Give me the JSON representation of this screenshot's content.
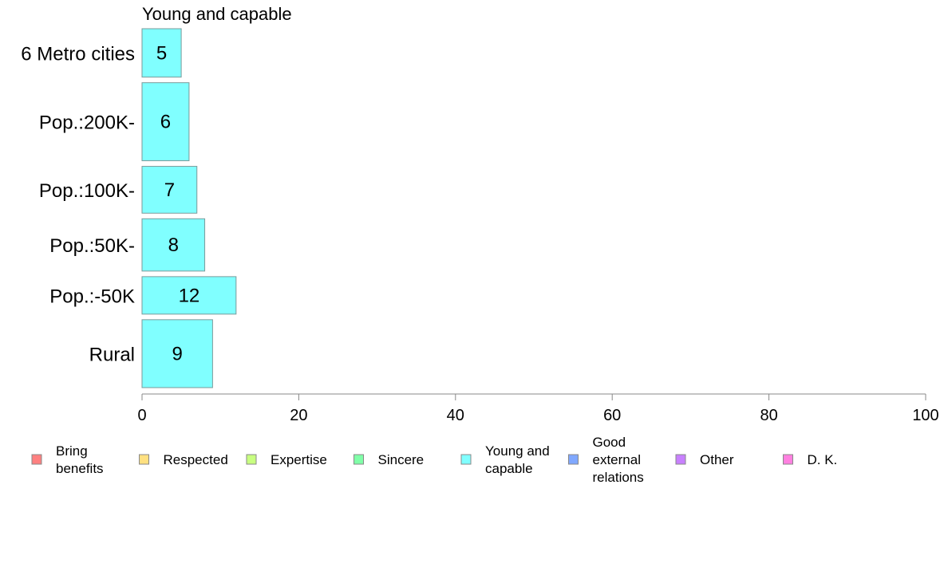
{
  "chart_data": {
    "type": "bar",
    "orientation": "horizontal",
    "title": "Young and capable",
    "categories": [
      "6 Metro cities",
      "Pop.:200K-",
      "Pop.:100K-",
      "Pop.:50K-",
      "Pop.:-50K",
      "Rural"
    ],
    "values": [
      5,
      6,
      7,
      8,
      12,
      9
    ],
    "bar_color": "#80FFFF",
    "bar_relative_widths": [
      0.62,
      1.0,
      0.6,
      0.67,
      0.48,
      0.87
    ],
    "xlim": [
      0,
      100
    ],
    "xticks": [
      0,
      20,
      40,
      60,
      80,
      100
    ],
    "xlabel": "",
    "ylabel": "",
    "grid": false,
    "legend_position": "bottom",
    "legend": [
      {
        "label": "Bring benefits",
        "lines": [
          "Bring",
          "benefits"
        ],
        "color": "#FF8080"
      },
      {
        "label": "Respected",
        "lines": [
          "Respected"
        ],
        "color": "#FFE080"
      },
      {
        "label": "Expertise",
        "lines": [
          "Expertise"
        ],
        "color": "#C8FF80"
      },
      {
        "label": "Sincere",
        "lines": [
          "Sincere"
        ],
        "color": "#80FFA8"
      },
      {
        "label": "Young and capable",
        "lines": [
          "Young and",
          "capable"
        ],
        "color": "#80FFFF"
      },
      {
        "label": "Good external relations",
        "lines": [
          "Good",
          "external",
          "relations"
        ],
        "color": "#80A8FF"
      },
      {
        "label": "Other",
        "lines": [
          "Other"
        ],
        "color": "#C880FF"
      },
      {
        "label": "D. K.",
        "lines": [
          "D. K."
        ],
        "color": "#FF80E0"
      }
    ]
  }
}
